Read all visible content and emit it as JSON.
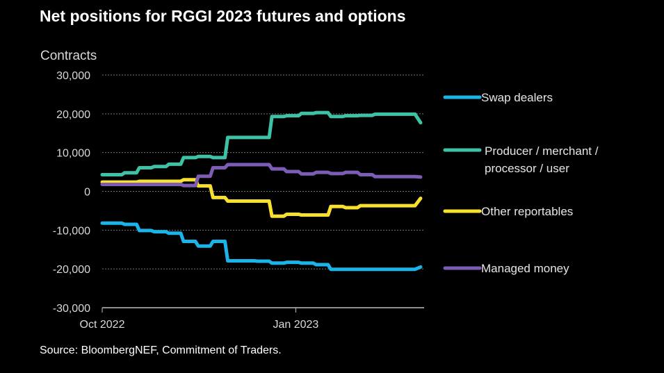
{
  "chart_data": {
    "type": "line",
    "title": "Net positions for RGGI 2023 futures and options",
    "ylabel": "Contracts",
    "xlabel": "",
    "ylim": [
      -30000,
      30000
    ],
    "yticks": [
      30000,
      20000,
      10000,
      0,
      -10000,
      -20000,
      -30000
    ],
    "ytick_labels": [
      "30,000",
      "20,000",
      "10,000",
      "0",
      "-10,000",
      "-20,000",
      "-30,000"
    ],
    "xlim": [
      "2022-10-01",
      "2023-03-03"
    ],
    "xticks": [
      {
        "date": "2022-10-01",
        "label": "Oct 2022"
      },
      {
        "date": "2023-01-01",
        "label": "Jan 2023"
      }
    ],
    "grid": "horizontal-dashed",
    "legend_placement": "right",
    "x": [
      "2022-10-04",
      "2022-10-11",
      "2022-10-18",
      "2022-10-25",
      "2022-11-01",
      "2022-11-08",
      "2022-11-15",
      "2022-11-22",
      "2022-11-29",
      "2022-12-06",
      "2022-12-13",
      "2022-12-20",
      "2022-12-27",
      "2023-01-03",
      "2023-01-10",
      "2023-01-17",
      "2023-01-24",
      "2023-01-31",
      "2023-02-07",
      "2023-02-14",
      "2023-02-21",
      "2023-02-28"
    ],
    "series": [
      {
        "name": "Swap dealers",
        "color": "#1BB4E8",
        "values": [
          -8200,
          -8500,
          -10100,
          -10400,
          -10800,
          -12900,
          -14100,
          -12900,
          -17900,
          -17900,
          -18000,
          -18500,
          -18300,
          -18500,
          -18900,
          -20100,
          -20100,
          -20100,
          -20100,
          -20100,
          -20100,
          -19500
        ]
      },
      {
        "name": "Producer / merchant / processor / user",
        "legend_lines": [
          "Producer / merchant /",
          "processor / user"
        ],
        "color": "#3FC1A5",
        "values": [
          4300,
          4800,
          6100,
          6400,
          7000,
          8700,
          9000,
          8700,
          13900,
          13900,
          13900,
          19300,
          19500,
          20100,
          20300,
          19300,
          19500,
          19600,
          19900,
          19900,
          19900,
          17700
        ]
      },
      {
        "name": "Other reportables",
        "color": "#F8E02F",
        "values": [
          2400,
          2400,
          2600,
          2600,
          2600,
          3000,
          1400,
          -1600,
          -2500,
          -2500,
          -2500,
          -6400,
          -5900,
          -6100,
          -6100,
          -3900,
          -4200,
          -3700,
          -3700,
          -3700,
          -3700,
          -1800
        ]
      },
      {
        "name": "Managed money",
        "color": "#7D5CB5",
        "values": [
          1800,
          1800,
          1800,
          1800,
          1800,
          1500,
          3900,
          6100,
          6900,
          6900,
          6900,
          5800,
          5100,
          4500,
          4900,
          4600,
          4900,
          4300,
          3800,
          3800,
          3800,
          3700
        ]
      }
    ]
  },
  "source": "Source: BloombergNEF, Commitment of Traders."
}
